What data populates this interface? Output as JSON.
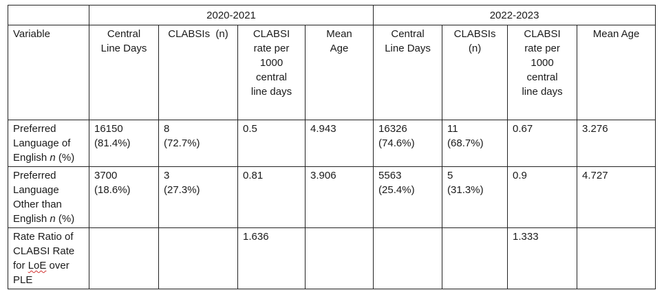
{
  "periods": [
    "2020-2021",
    "2022-2023"
  ],
  "headers": {
    "variable": "Variable",
    "p1": {
      "central_line_days": [
        "Central",
        "Line Days"
      ],
      "clabsis": [
        "CLABSIs  (n)"
      ],
      "clabsi_rate": [
        "CLABSI",
        "rate per",
        "1000",
        "central",
        "line days"
      ],
      "mean_age": [
        "Mean",
        "Age"
      ]
    },
    "p2": {
      "central_line_days": [
        "Central",
        "Line Days"
      ],
      "clabsis": [
        "CLABSIs",
        "(n)"
      ],
      "clabsi_rate": [
        "CLABSI",
        "rate per",
        "1000",
        "central",
        "line days"
      ],
      "mean_age": [
        "Mean Age"
      ]
    }
  },
  "rows": {
    "ple": {
      "label": [
        "Preferred",
        "Language of",
        "English ",
        "n",
        " (%)"
      ],
      "p1": {
        "central_line_days": [
          "16150",
          "(81.4%)"
        ],
        "clabsis": [
          "8",
          "(72.7%)"
        ],
        "clabsi_rate": "0.5",
        "mean_age": "4.943"
      },
      "p2": {
        "central_line_days": [
          "16326",
          "(74.6%)"
        ],
        "clabsis": [
          "11",
          "(68.7%)"
        ],
        "clabsi_rate": "0.67",
        "mean_age": "3.276"
      }
    },
    "lope": {
      "label": [
        "Preferred",
        "Language",
        "Other than",
        "English ",
        "n",
        " (%)"
      ],
      "p1": {
        "central_line_days": [
          "3700",
          "(18.6%)"
        ],
        "clabsis": [
          "3",
          "(27.3%)"
        ],
        "clabsi_rate": "0.81",
        "mean_age": "3.906"
      },
      "p2": {
        "central_line_days": [
          "5563",
          "(25.4%)"
        ],
        "clabsis": [
          "5",
          "(31.3%)"
        ],
        "clabsi_rate": "0.9",
        "mean_age": "4.727"
      }
    },
    "ratio": {
      "label": [
        "Rate Ratio of",
        "CLABSI Rate",
        "for ",
        "LoE",
        " over",
        "PLE"
      ],
      "p1": {
        "central_line_days": "",
        "clabsis": "",
        "clabsi_rate": "1.636",
        "mean_age": ""
      },
      "p2": {
        "central_line_days": "",
        "clabsis": "",
        "clabsi_rate": "1.333",
        "mean_age": ""
      }
    }
  }
}
